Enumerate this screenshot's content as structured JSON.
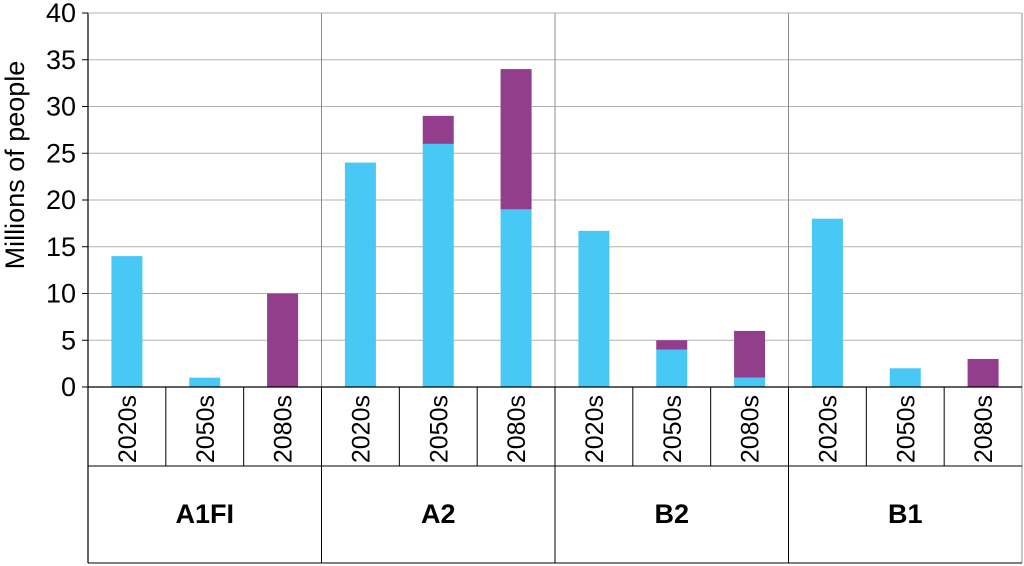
{
  "chart_data": {
    "type": "bar",
    "stacked": true,
    "title": "",
    "xlabel": "",
    "ylabel": "Millions of people",
    "ylim": [
      0,
      40
    ],
    "yticks": [
      0,
      5,
      10,
      15,
      20,
      25,
      30,
      35,
      40
    ],
    "grid": true,
    "groups": [
      "A1FI",
      "A2",
      "B2",
      "B1"
    ],
    "categories": [
      "2020s",
      "2050s",
      "2080s"
    ],
    "series": [
      {
        "color": "#47c8f5",
        "values": [
          [
            14,
            1,
            0
          ],
          [
            24,
            26,
            19
          ],
          [
            16.7,
            4,
            1
          ],
          [
            18,
            2,
            0
          ]
        ]
      },
      {
        "color": "#933e8c",
        "values": [
          [
            0,
            0,
            10
          ],
          [
            0,
            3,
            15
          ],
          [
            0,
            1,
            5
          ],
          [
            0,
            0,
            3
          ]
        ]
      }
    ]
  }
}
